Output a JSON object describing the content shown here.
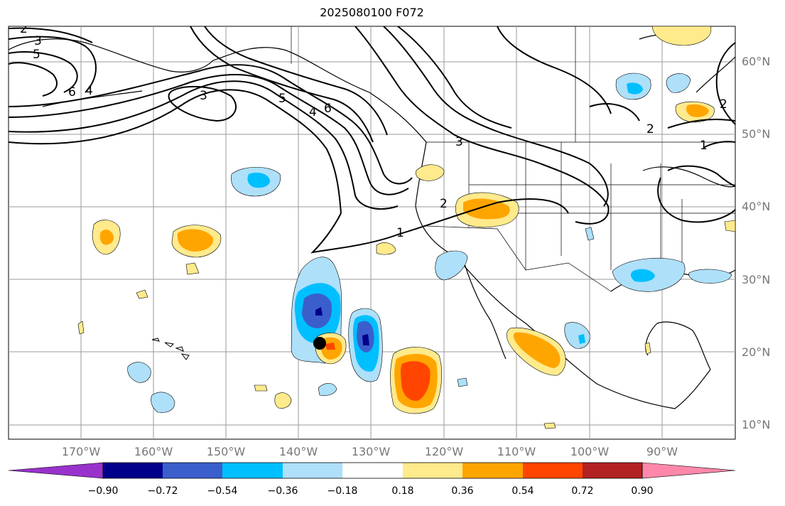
{
  "title": "2025080100 F072",
  "map": {
    "region": "North Pacific / North America",
    "lat_labels": [
      "60°N",
      "50°N",
      "40°N",
      "30°N",
      "20°N",
      "10°N"
    ],
    "lon_labels": [
      "170°W",
      "160°W",
      "150°W",
      "140°W",
      "130°W",
      "120°W",
      "110°W",
      "100°W",
      "90°W"
    ],
    "contour_labels": [
      "2",
      "3",
      "5",
      "6",
      "4",
      "3",
      "5",
      "4",
      "6",
      "3",
      "2",
      "1",
      "1",
      "2",
      "2"
    ],
    "storm_marker": "storm-center",
    "fill_colors": {
      "light_blue": "#aee0fa",
      "cyan": "#00bfff",
      "blue": "#3a5fcd",
      "navy": "#00008b",
      "light_yellow": "#ffea8c",
      "orange": "#ffa500",
      "red_orange": "#ff4500"
    }
  },
  "colorbar": {
    "ticks": [
      "−0.90",
      "−0.72",
      "−0.54",
      "−0.36",
      "−0.18",
      "0.18",
      "0.36",
      "0.54",
      "0.72",
      "0.90"
    ],
    "colors": [
      "#9932cc",
      "#00008b",
      "#3a5fcd",
      "#00bfff",
      "#aee0fa",
      "#ffffff",
      "#ffea8c",
      "#ffa500",
      "#ff4500",
      "#b22222",
      "#ff88aa"
    ]
  }
}
